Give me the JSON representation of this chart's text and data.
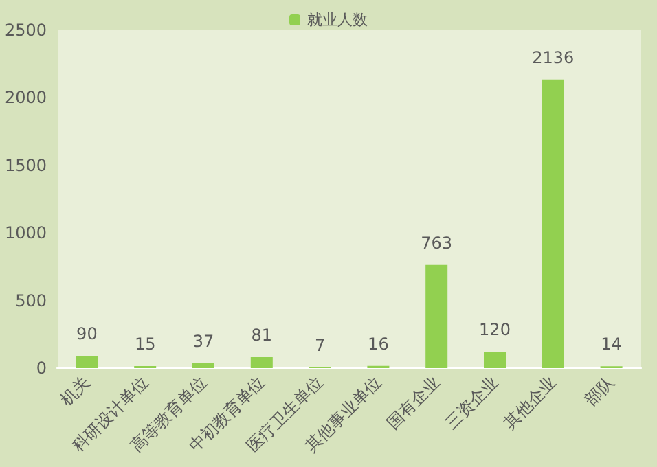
{
  "chart_data": {
    "type": "bar",
    "categories": [
      "机关",
      "科研设计单位",
      "高等教育单位",
      "中初教育单位",
      "医疗卫生单位",
      "其他事业单位",
      "国有企业",
      "三资企业",
      "其他企业",
      "部队"
    ],
    "series": [
      {
        "name": "就业人数",
        "color": "#92d050",
        "values": [
          90,
          15,
          37,
          81,
          7,
          16,
          763,
          120,
          2136,
          14
        ]
      }
    ],
    "ylim": [
      0,
      2500
    ],
    "yticks": [
      0,
      500,
      1000,
      1500,
      2000,
      2500
    ],
    "data_labels": true,
    "legend": "top",
    "grid": false
  }
}
